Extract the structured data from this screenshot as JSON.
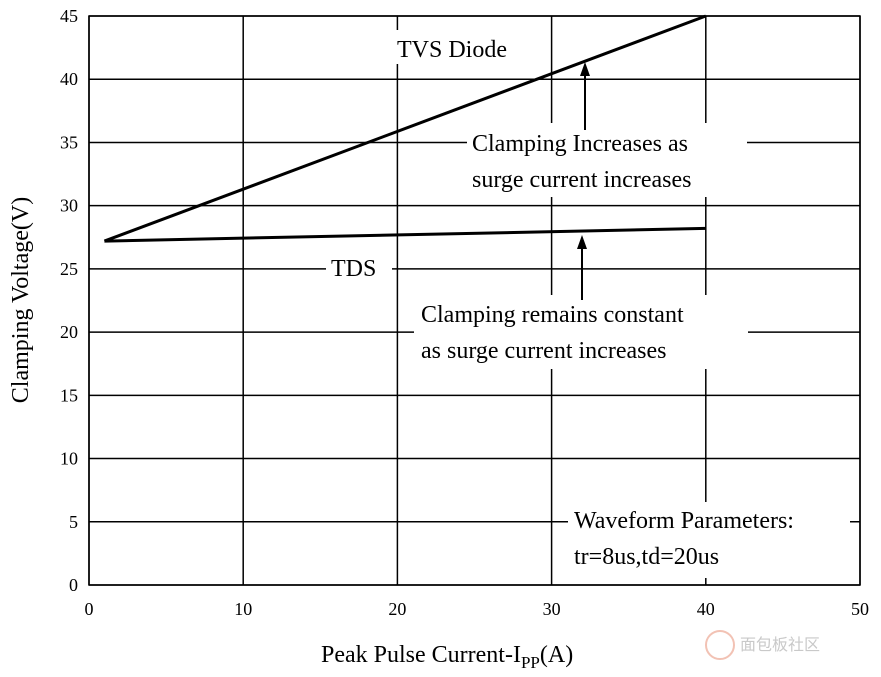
{
  "chart_data": {
    "type": "line",
    "title": "",
    "xlabel": "Peak Pulse Current-I",
    "xlabel_sub": "PP",
    "xlabel_suffix": "(A)",
    "ylabel": "Clamping Voltage(V)",
    "xlim": [
      0,
      50
    ],
    "ylim": [
      0,
      45
    ],
    "xticks": [
      0,
      10,
      20,
      30,
      40,
      50
    ],
    "yticks": [
      0,
      5,
      10,
      15,
      20,
      25,
      30,
      35,
      40,
      45
    ],
    "grid": true,
    "series": [
      {
        "name": "TVS Diode",
        "x": [
          1,
          40
        ],
        "y": [
          27.2,
          45
        ]
      },
      {
        "name": "TDS",
        "x": [
          1,
          40
        ],
        "y": [
          27.2,
          28.2
        ]
      }
    ],
    "annotations": [
      {
        "lines": [
          "Clamping Increases as",
          "surge current increases"
        ]
      },
      {
        "lines": [
          "Clamping remains constant",
          "as surge current increases"
        ]
      },
      {
        "lines": [
          "Waveform Parameters:",
          "tr=8us,td=20us"
        ]
      }
    ]
  },
  "watermark": {
    "text": "面包板社区"
  }
}
